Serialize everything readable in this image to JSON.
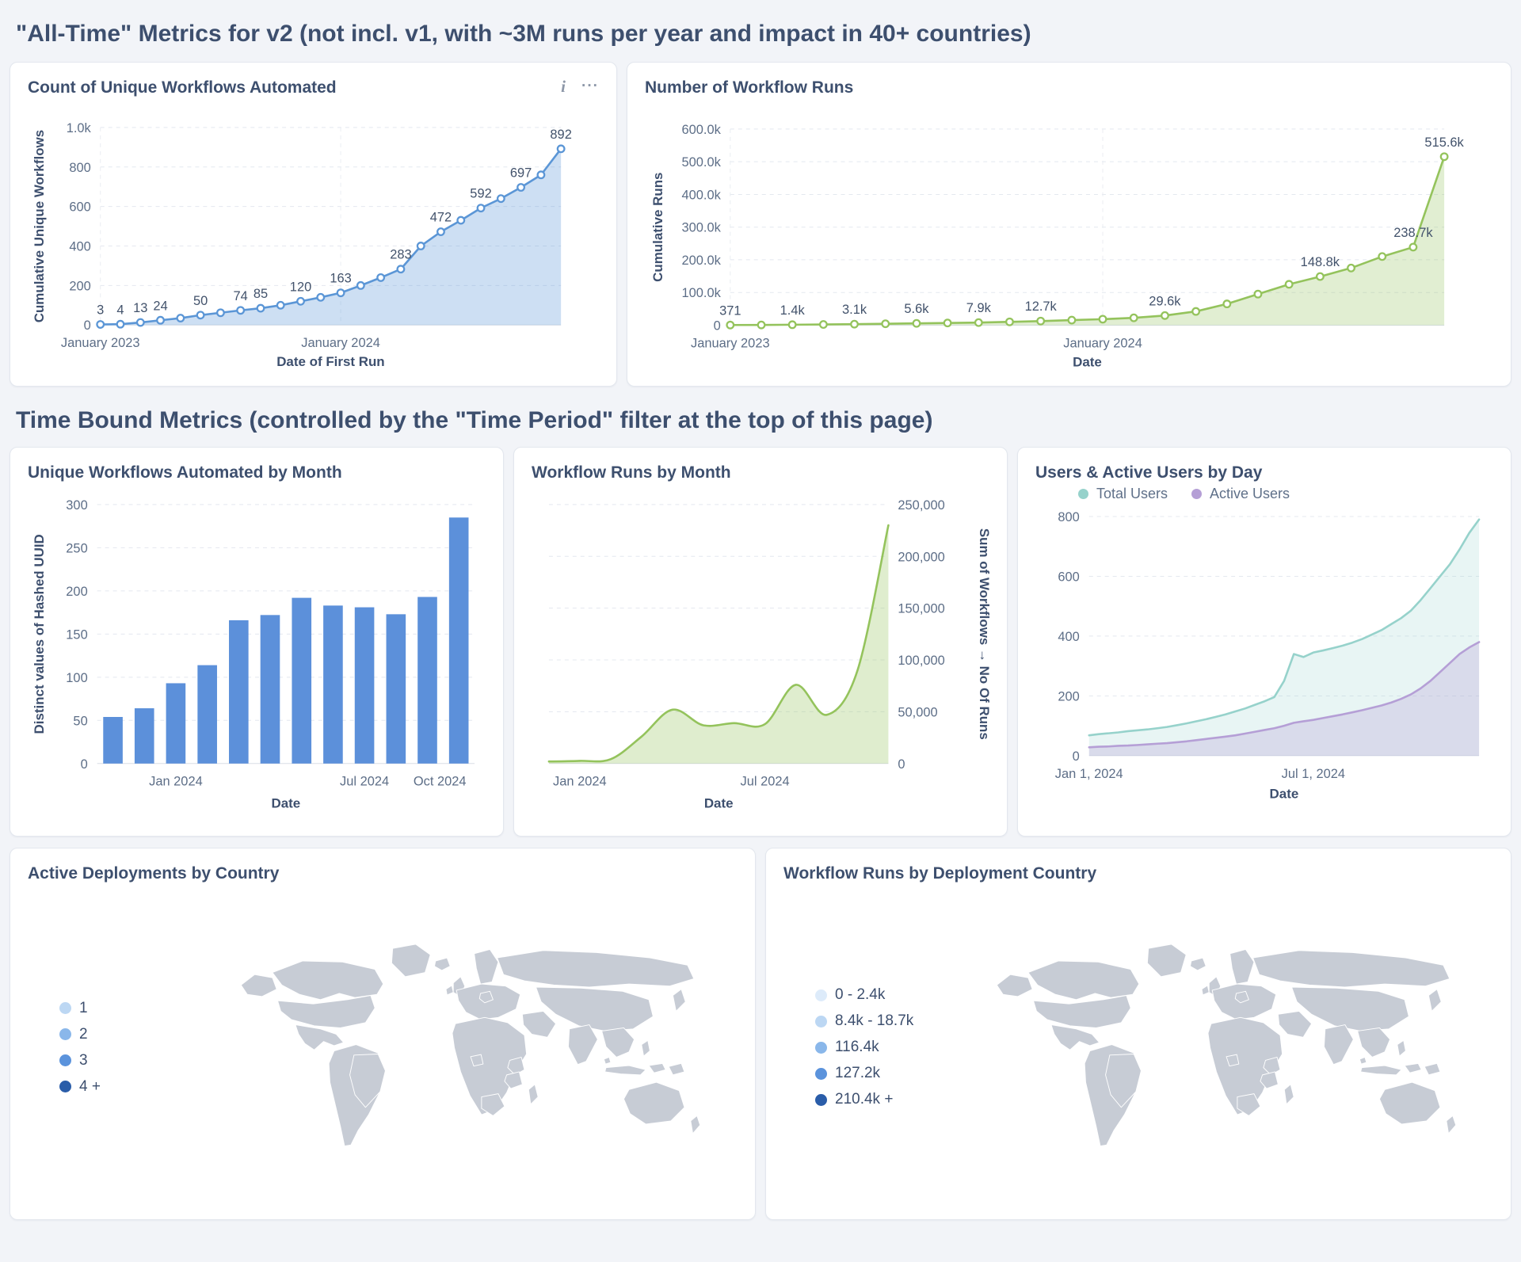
{
  "page": {
    "title": "\"All-Time\" Metrics for v2 (not incl. v1, with ~3M runs per year and impact in 40+ countries)",
    "section_time_bound": "Time Bound Metrics (controlled by the \"Time Period\" filter at the top of this page)"
  },
  "icons": {
    "info": "i",
    "menu": "···"
  },
  "chart_data": [
    {
      "type": "line",
      "title": "Count of Unique Workflows Automated",
      "xlabel": "Date of First Run",
      "ylabel": "Cumulative Unique Workflows",
      "color": "#5b96d6",
      "fill": "rgba(91,150,214,0.30)",
      "markers": true,
      "ymax": 1000,
      "ylim": [
        0,
        1000
      ],
      "yticks": [
        {
          "v": 0,
          "l": "0"
        },
        {
          "v": 200,
          "l": "200"
        },
        {
          "v": 400,
          "l": "400"
        },
        {
          "v": 600,
          "l": "600"
        },
        {
          "v": 800,
          "l": "800"
        },
        {
          "v": 1000,
          "l": "1.0k"
        }
      ],
      "months": [
        "Jan 2023",
        "Feb 2023",
        "Mar 2023",
        "Apr 2023",
        "May 2023",
        "Jun 2023",
        "Jul 2023",
        "Aug 2023",
        "Sep 2023",
        "Oct 2023",
        "Nov 2023",
        "Dec 2023",
        "Jan 2024",
        "Feb 2024",
        "Mar 2024",
        "Apr 2024",
        "May 2024",
        "Jun 2024",
        "Jul 2024",
        "Aug 2024",
        "Sep 2024",
        "Oct 2024",
        "Nov 2024",
        "Dec 2024"
      ],
      "values": [
        3,
        4,
        13,
        24,
        35,
        50,
        62,
        74,
        85,
        100,
        120,
        140,
        163,
        200,
        240,
        283,
        400,
        472,
        530,
        592,
        640,
        697,
        760,
        892
      ],
      "xticks": [
        {
          "i": 0,
          "label": "January 2023"
        },
        {
          "i": 12,
          "label": "January 2024"
        }
      ],
      "point_labels": [
        {
          "i": 0,
          "t": "3"
        },
        {
          "i": 1,
          "t": "4"
        },
        {
          "i": 2,
          "t": "13"
        },
        {
          "i": 3,
          "t": "24"
        },
        {
          "i": 5,
          "t": "50"
        },
        {
          "i": 7,
          "t": "74"
        },
        {
          "i": 8,
          "t": "85"
        },
        {
          "i": 10,
          "t": "120"
        },
        {
          "i": 12,
          "t": "163"
        },
        {
          "i": 15,
          "t": "283"
        },
        {
          "i": 17,
          "t": "472"
        },
        {
          "i": 19,
          "t": "592"
        },
        {
          "i": 21,
          "t": "697"
        },
        {
          "i": 23,
          "t": "892"
        }
      ]
    },
    {
      "type": "line",
      "title": "Number of Workflow Runs",
      "xlabel": "Date",
      "ylabel": "Cumulative Runs",
      "color": "#94c35c",
      "fill": "rgba(148,195,92,0.28)",
      "markers": true,
      "ymax": 600000,
      "ylim": [
        0,
        600000
      ],
      "yticks": [
        {
          "v": 0,
          "l": "0"
        },
        {
          "v": 100000,
          "l": "100.0k"
        },
        {
          "v": 200000,
          "l": "200.0k"
        },
        {
          "v": 300000,
          "l": "300.0k"
        },
        {
          "v": 400000,
          "l": "400.0k"
        },
        {
          "v": 500000,
          "l": "500.0k"
        },
        {
          "v": 600000,
          "l": "600.0k"
        }
      ],
      "months": [
        "Jan 2023",
        "Feb 2023",
        "Mar 2023",
        "Apr 2023",
        "May 2023",
        "Jun 2023",
        "Jul 2023",
        "Aug 2023",
        "Sep 2023",
        "Oct 2023",
        "Nov 2023",
        "Dec 2023",
        "Jan 2024",
        "Feb 2024",
        "Mar 2024",
        "Apr 2024",
        "May 2024",
        "Jun 2024",
        "Jul 2024",
        "Aug 2024",
        "Sep 2024",
        "Oct 2024",
        "Nov 2024",
        "Dec 2024"
      ],
      "values": [
        371,
        800,
        1400,
        2100,
        3100,
        4300,
        5600,
        6700,
        7900,
        10200,
        12700,
        15500,
        18500,
        22500,
        29600,
        42000,
        65000,
        95000,
        125000,
        148800,
        175000,
        210000,
        238700,
        515600
      ],
      "xticks": [
        {
          "i": 0,
          "label": "January 2023"
        },
        {
          "i": 12,
          "label": "January 2024"
        }
      ],
      "point_labels": [
        {
          "i": 0,
          "t": "371"
        },
        {
          "i": 2,
          "t": "1.4k"
        },
        {
          "i": 4,
          "t": "3.1k"
        },
        {
          "i": 6,
          "t": "5.6k"
        },
        {
          "i": 8,
          "t": "7.9k"
        },
        {
          "i": 10,
          "t": "12.7k"
        },
        {
          "i": 14,
          "t": "29.6k"
        },
        {
          "i": 19,
          "t": "148.8k"
        },
        {
          "i": 22,
          "t": "238.7k"
        },
        {
          "i": 23,
          "t": "515.6k"
        }
      ]
    },
    {
      "type": "bar",
      "title": "Unique Workflows Automated by Month",
      "xlabel": "Date",
      "ylabel": "Distinct values of Hashed UUID",
      "color": "#5c90da",
      "ymax": 300,
      "ylim": [
        0,
        300
      ],
      "yticks": [
        {
          "v": 0,
          "l": "0"
        },
        {
          "v": 50,
          "l": "50"
        },
        {
          "v": 100,
          "l": "100"
        },
        {
          "v": 150,
          "l": "150"
        },
        {
          "v": 200,
          "l": "200"
        },
        {
          "v": 250,
          "l": "250"
        },
        {
          "v": 300,
          "l": "300"
        }
      ],
      "categories": [
        "Nov 2023",
        "Dec 2023",
        "Jan 2024",
        "Feb 2024",
        "Mar 2024",
        "Apr 2024",
        "May 2024",
        "Jun 2024",
        "Jul 2024",
        "Aug 2024",
        "Sep 2024",
        "Oct 2024"
      ],
      "values": [
        54,
        64,
        93,
        114,
        166,
        172,
        192,
        183,
        181,
        173,
        193,
        285
      ],
      "xticks": [
        {
          "i": 2,
          "label": "Jan 2024"
        },
        {
          "i": 8,
          "label": "Jul 2024"
        },
        {
          "i": 11,
          "label": "Oct 2024"
        }
      ]
    },
    {
      "type": "line",
      "smooth": true,
      "title": "Workflow Runs by Month",
      "xlabel": "Date",
      "ylabel_right": "Sum of Workflows → No Of Runs",
      "yaxis": "right",
      "color": "#94c35c",
      "fill": "rgba(148,195,92,0.30)",
      "markers": false,
      "ymax": 250000,
      "ylim": [
        0,
        250000
      ],
      "yticks": [
        {
          "v": 0,
          "l": "0"
        },
        {
          "v": 50000,
          "l": "50,000"
        },
        {
          "v": 100000,
          "l": "100,000"
        },
        {
          "v": 150000,
          "l": "150,000"
        },
        {
          "v": 200000,
          "l": "200,000"
        },
        {
          "v": 250000,
          "l": "250,000"
        }
      ],
      "months": [
        "Dec 2023",
        "Jan 2024",
        "Feb 2024",
        "Mar 2024",
        "Apr 2024",
        "May 2024",
        "Jun 2024",
        "Jul 2024",
        "Aug 2024",
        "Sep 2024",
        "Oct 2024",
        "Nov 2024"
      ],
      "values": [
        2000,
        2600,
        4200,
        26000,
        52000,
        37000,
        39000,
        38000,
        76000,
        47000,
        90000,
        230000
      ],
      "xticks": [
        {
          "i": 1,
          "label": "Jan 2024"
        },
        {
          "i": 7,
          "label": "Jul 2024"
        }
      ]
    },
    {
      "type": "line",
      "title": "Users & Active Users by Day",
      "xlabel": "Date",
      "ymax": 800,
      "ylim": [
        0,
        800
      ],
      "yticks": [
        {
          "v": 0,
          "l": "0"
        },
        {
          "v": 200,
          "l": "200"
        },
        {
          "v": 400,
          "l": "400"
        },
        {
          "v": 600,
          "l": "600"
        },
        {
          "v": 800,
          "l": "800"
        }
      ],
      "series": [
        {
          "name": "Total Users",
          "color": "#96d2cb",
          "fill": "rgba(150,210,203,0.22)",
          "values": [
            68,
            72,
            75,
            78,
            82,
            85,
            88,
            92,
            96,
            102,
            108,
            115,
            122,
            130,
            138,
            148,
            158,
            170,
            182,
            196,
            250,
            340,
            330,
            345,
            352,
            360,
            368,
            378,
            390,
            405,
            420,
            440,
            460,
            485,
            520,
            560,
            600,
            640,
            690,
            745,
            790
          ]
        },
        {
          "name": "Active Users",
          "color": "#b59fd6",
          "fill": "rgba(181,159,214,0.30)",
          "values": [
            28,
            30,
            31,
            33,
            34,
            36,
            38,
            40,
            42,
            45,
            48,
            52,
            56,
            60,
            64,
            68,
            74,
            80,
            86,
            92,
            100,
            110,
            115,
            120,
            126,
            132,
            138,
            145,
            152,
            160,
            168,
            178,
            190,
            205,
            225,
            250,
            280,
            310,
            340,
            362,
            380
          ]
        }
      ],
      "xticks": [
        {
          "i": 0,
          "label": "Jan 1, 2024"
        },
        {
          "i": 23,
          "label": "Jul 1, 2024"
        }
      ]
    }
  ],
  "maps": {
    "deployments": {
      "title": "Active Deployments by Country",
      "legend": [
        {
          "label": "1",
          "color": "#bcd7f3"
        },
        {
          "label": "2",
          "color": "#8ab7ea"
        },
        {
          "label": "3",
          "color": "#5b93dc"
        },
        {
          "label": "4 +",
          "color": "#2a5da9"
        }
      ],
      "countries": {
        "usa": "#2a5da9",
        "alaska": "#2a5da9",
        "brazil": "#8ab7ea",
        "uk": "#8ab7ea",
        "norway_sweden": "#bcd7f3",
        "germany": "#bcd7f3",
        "kenya": "#5b93dc",
        "tanzania": "#5b93dc",
        "southafrica": "#5b93dc",
        "australia": "#8ab7ea",
        "india": "#bcd7f3",
        "philippines": "#bcd7f3",
        "singapore": "#bcd7f3"
      }
    },
    "runs": {
      "title": "Workflow Runs by Deployment Country",
      "legend": [
        {
          "label": "0 - 2.4k",
          "color": "#ddebfa"
        },
        {
          "label": "8.4k - 18.7k",
          "color": "#bcd7f3"
        },
        {
          "label": "116.4k",
          "color": "#8ab7ea"
        },
        {
          "label": "127.2k",
          "color": "#5b93dc"
        },
        {
          "label": "210.4k +",
          "color": "#2a5da9"
        }
      ],
      "countries": {
        "canada": "#ddebfa",
        "usa": "#bcd7f3",
        "alaska": "#8ab7ea",
        "mexico": "#ddebfa",
        "brazil": "#8ab7ea",
        "uk": "#ddebfa",
        "ireland": "#ddebfa",
        "norway_sweden": "#ddebfa",
        "germany": "#ddebfa",
        "nigeria": "#ddebfa",
        "kenya": "#8ab7ea",
        "tanzania": "#bcd7f3",
        "southafrica": "#2a5da9",
        "australia": "#ddebfa",
        "india": "#ddebfa",
        "philippines": "#ddebfa",
        "singapore": "#bcd7f3"
      }
    }
  }
}
